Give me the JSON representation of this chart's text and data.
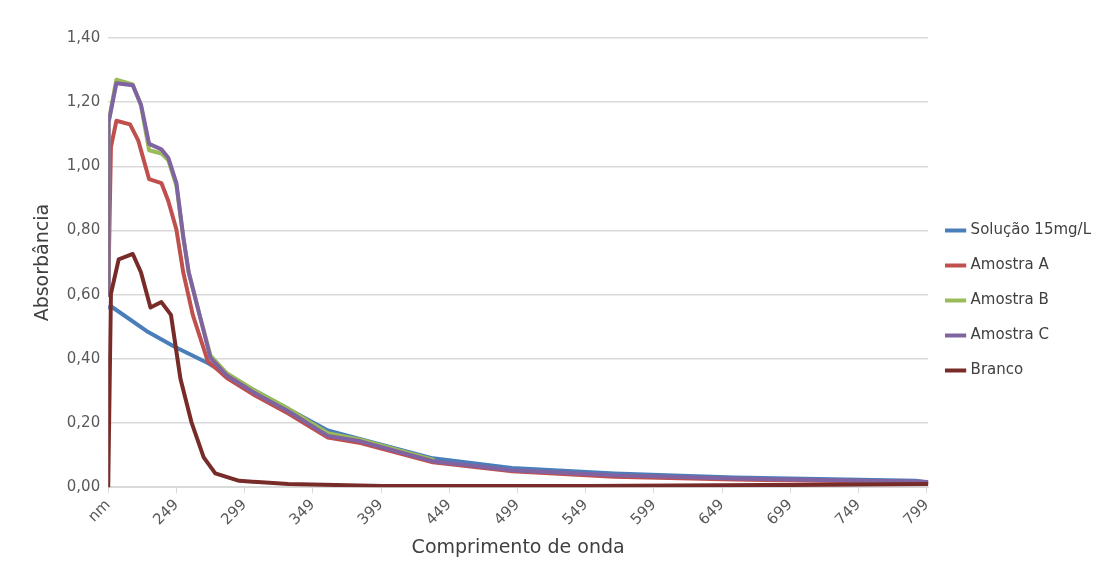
{
  "chart_data": {
    "type": "line",
    "xlabel": "Comprimento de onda",
    "ylabel": "Absorbância",
    "xlim": [
      199,
      800
    ],
    "xticks": [
      {
        "value": 199,
        "label": "nm"
      },
      249,
      299,
      349,
      399,
      449,
      499,
      549,
      599,
      649,
      699,
      749,
      799
    ],
    "ylim": [
      0,
      1.4
    ],
    "yticks": [
      {
        "value": 0,
        "label": "0,00"
      },
      {
        "value": 0.2,
        "label": "0,20"
      },
      {
        "value": 0.4,
        "label": "0,40"
      },
      {
        "value": 0.6,
        "label": "0,60"
      },
      {
        "value": 0.8,
        "label": "0,80"
      },
      {
        "value": 1.0,
        "label": "1,00"
      },
      {
        "value": 1.2,
        "label": "1,20"
      },
      {
        "value": 1.4,
        "label": "1,40"
      }
    ],
    "grid": "y",
    "legend": "right",
    "marker": "none",
    "line_style": "solid",
    "series": [
      {
        "name": "Solução 15mg/L",
        "color": "#4a7ebb",
        "x": [
          199,
          201,
          227,
          248,
          272,
          301,
          334,
          360,
          384,
          437,
          495,
          570,
          658,
          791,
          800
        ],
        "values": [
          0.56,
          0.564,
          0.487,
          0.437,
          0.387,
          0.314,
          0.237,
          0.177,
          0.15,
          0.09,
          0.06,
          0.043,
          0.03,
          0.02,
          0.015
        ]
      },
      {
        "name": "Amostra A",
        "color": "#c0504d",
        "x": [
          199,
          201,
          205,
          215,
          221,
          229,
          238,
          243,
          249,
          254,
          261,
          272,
          286,
          307,
          331,
          360,
          384,
          437,
          495,
          570,
          658,
          791,
          800
        ],
        "values": [
          0.6,
          1.06,
          1.142,
          1.131,
          1.081,
          0.96,
          0.948,
          0.893,
          0.803,
          0.67,
          0.537,
          0.393,
          0.34,
          0.285,
          0.23,
          0.155,
          0.138,
          0.078,
          0.05,
          0.033,
          0.024,
          0.016,
          0.015
        ]
      },
      {
        "name": "Amostra B",
        "color": "#9bbb59",
        "x": [
          199,
          199.3,
          205,
          217,
          223,
          229,
          238,
          243,
          249,
          254,
          258,
          266,
          274,
          286,
          307,
          331,
          360,
          384,
          437
        ],
        "values": [
          0.6,
          1.14,
          1.27,
          1.255,
          1.19,
          1.05,
          1.04,
          1.02,
          0.94,
          0.78,
          0.67,
          0.537,
          0.41,
          0.355,
          0.3,
          0.245,
          0.168,
          0.148,
          0.086
        ]
      },
      {
        "name": "Amostra C",
        "color": "#8064a2",
        "x": [
          199,
          199.3,
          205,
          217,
          223,
          229,
          238,
          243,
          249,
          254,
          258,
          266,
          274,
          286,
          307,
          331,
          360,
          384,
          437,
          495,
          570,
          658,
          791,
          800
        ],
        "values": [
          0.6,
          1.137,
          1.259,
          1.253,
          1.193,
          1.07,
          1.053,
          1.027,
          0.948,
          0.781,
          0.67,
          0.537,
          0.403,
          0.348,
          0.292,
          0.237,
          0.16,
          0.143,
          0.081,
          0.053,
          0.037,
          0.027,
          0.018,
          0.016
        ]
      },
      {
        "name": "Branco",
        "color": "#772c2a",
        "x": [
          199,
          201,
          206.7,
          217,
          223,
          230,
          238,
          245,
          252,
          260,
          269,
          277.5,
          295,
          331,
          400,
          550,
          700,
          800
        ],
        "values": [
          0,
          0.603,
          0.71,
          0.727,
          0.67,
          0.56,
          0.577,
          0.537,
          0.337,
          0.203,
          0.093,
          0.043,
          0.02,
          0.01,
          0.004,
          0.004,
          0.007,
          0.01
        ]
      }
    ]
  }
}
